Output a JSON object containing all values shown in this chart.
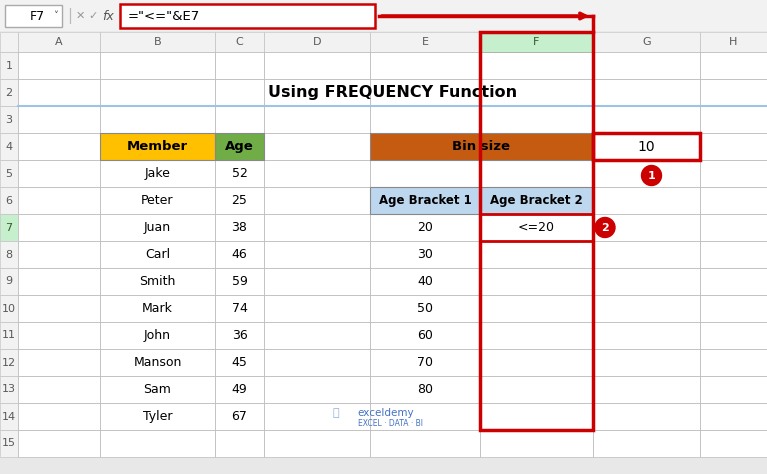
{
  "title": "Using FREQUENCY Function",
  "formula_bar_cell": "F7",
  "formula_bar_text": "=\"<=\"&E7",
  "col_labels": [
    "A",
    "B",
    "C",
    "D",
    "E",
    "F",
    "G",
    "H"
  ],
  "members": [
    "Jake",
    "Peter",
    "Juan",
    "Carl",
    "Smith",
    "Mark",
    "John",
    "Manson",
    "Sam",
    "Tyler"
  ],
  "ages": [
    52,
    25,
    38,
    46,
    59,
    74,
    36,
    45,
    49,
    67
  ],
  "age_bracket1": [
    20,
    30,
    40,
    50,
    60,
    70,
    80
  ],
  "age_bracket2_row1": "<=20",
  "bin_size": "10",
  "member_header_color": "#FFC000",
  "age_header_color": "#70AD47",
  "bin_size_header_color": "#C55A11",
  "age_bracket_header_color": "#BDD7EE",
  "f_col_header_color": "#C6EFCE",
  "f_col_header_border": "#507E32",
  "row7_header_color": "#C6EFCE",
  "grid_color": "#BFBFBF",
  "header_bg": "#F2F2F2",
  "cell_bg": "#FFFFFF",
  "red_color": "#CC0000",
  "title_color": "#000000",
  "blue_line_color": "#9DC3E6",
  "watermark_color": "#4472C4"
}
